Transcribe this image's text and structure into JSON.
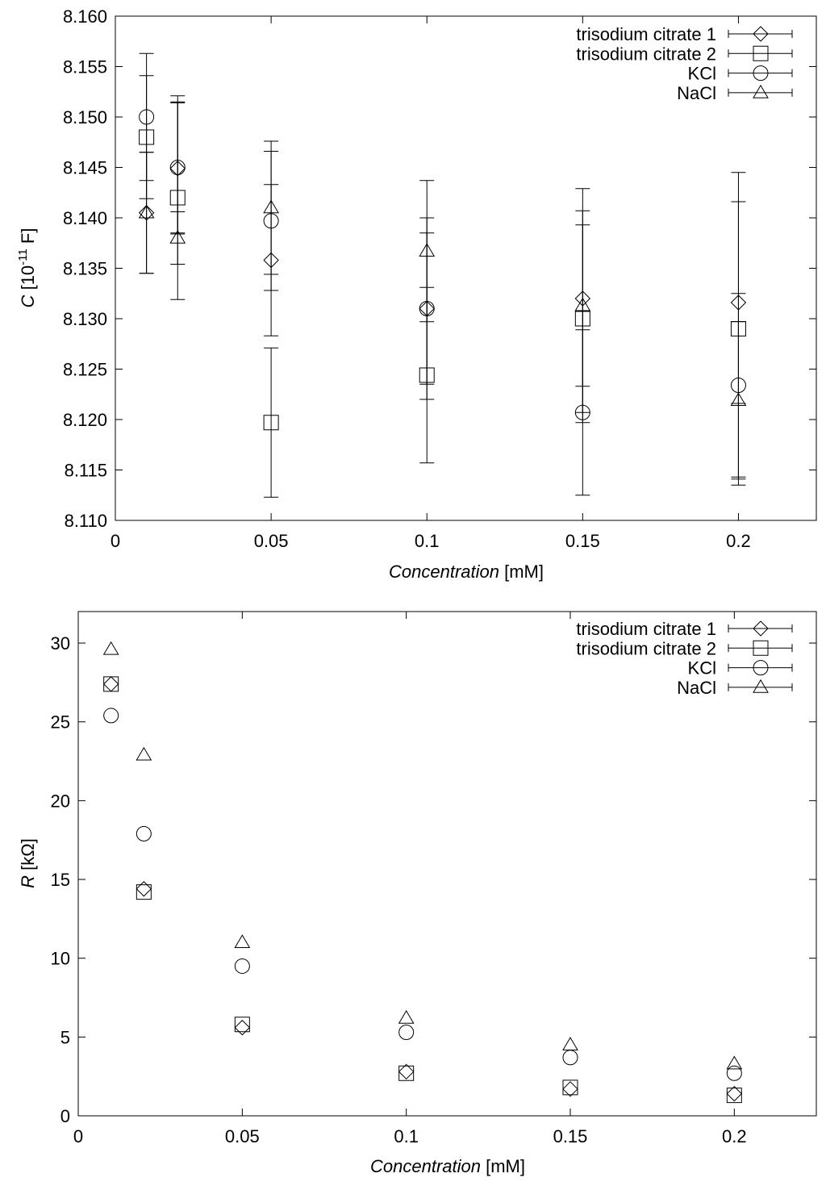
{
  "chart_data": [
    {
      "type": "scatter",
      "y_label_symbol": "C",
      "y_label_base": "[10",
      "y_label_exp": "-11",
      "y_label_rest": "F]",
      "x_label_symbol": "Concentration",
      "x_label_unit": "[mM]",
      "xlim": [
        0,
        0.225
      ],
      "xticks": [
        0,
        0.05,
        0.1,
        0.15,
        0.2
      ],
      "ylim": [
        8.11,
        8.16
      ],
      "yticks": [
        {
          "value": 8.11,
          "label": "8.110"
        },
        {
          "value": 8.115,
          "label": "8.115"
        },
        {
          "value": 8.12,
          "label": "8.120"
        },
        {
          "value": 8.125,
          "label": "8.125"
        },
        {
          "value": 8.13,
          "label": "8.130"
        },
        {
          "value": 8.135,
          "label": "8.135"
        },
        {
          "value": 8.14,
          "label": "8.140"
        },
        {
          "value": 8.145,
          "label": "8.145"
        },
        {
          "value": 8.15,
          "label": "8.150"
        },
        {
          "value": 8.155,
          "label": "8.155"
        },
        {
          "value": 8.16,
          "label": "8.160"
        }
      ],
      "legend": "upper right",
      "x": [
        0.01,
        0.02,
        0.05,
        0.1,
        0.15,
        0.2
      ],
      "series": [
        {
          "name": "trisodium citrate 1",
          "marker": "diamond",
          "color": "#000000",
          "values": [
            8.1405,
            8.1449,
            8.1358,
            8.131,
            8.132,
            8.1316
          ],
          "errors": [
            0.006,
            0.0065,
            0.0075,
            0.009,
            0.0087,
            0.01
          ]
        },
        {
          "name": "trisodium citrate 2",
          "marker": "square",
          "color": "#000000",
          "values": [
            8.148,
            8.142,
            8.1197,
            8.1244,
            8.13,
            8.129
          ],
          "errors": [
            0.0061,
            0.0101,
            0.0074,
            0.0087,
            0.0093,
            0.0155
          ]
        },
        {
          "name": "KCl",
          "marker": "circle",
          "color": "#000000",
          "values": [
            8.15,
            8.145,
            8.1397,
            8.131,
            8.1207,
            8.1234
          ],
          "errors": [
            0.0063,
            0.0065,
            0.0069,
            0.0075,
            0.0082,
            0.0091
          ]
        },
        {
          "name": "NaCl",
          "marker": "triangle",
          "color": "#000000",
          "values": [
            8.1405,
            8.138,
            8.141,
            8.1367,
            8.1313,
            8.1219
          ],
          "errors": [
            0.006,
            0.0026,
            0.0066,
            0.007,
            0.0116,
            0.0078
          ]
        }
      ]
    },
    {
      "type": "scatter",
      "y_label_symbol": "R",
      "y_label_unit": "[kΩ]",
      "x_label_symbol": "Concentration",
      "x_label_unit": "[mM]",
      "xlim": [
        0,
        0.225
      ],
      "xticks": [
        0,
        0.05,
        0.1,
        0.15,
        0.2
      ],
      "ylim": [
        0,
        32
      ],
      "yticks": [
        0,
        5,
        10,
        15,
        20,
        25,
        30
      ],
      "legend": "upper right",
      "x": [
        0.01,
        0.02,
        0.05,
        0.1,
        0.15,
        0.2
      ],
      "series": [
        {
          "name": "trisodium citrate 1",
          "marker": "diamond",
          "color": "#000000",
          "values": [
            27.4,
            14.4,
            5.6,
            2.8,
            1.7,
            1.4
          ]
        },
        {
          "name": "trisodium citrate 2",
          "marker": "square",
          "color": "#000000",
          "values": [
            27.4,
            14.2,
            5.8,
            2.7,
            1.8,
            1.3
          ]
        },
        {
          "name": "KCl",
          "marker": "circle",
          "color": "#000000",
          "values": [
            25.4,
            17.9,
            9.5,
            5.3,
            3.7,
            2.7
          ]
        },
        {
          "name": "NaCl",
          "marker": "triangle",
          "color": "#000000",
          "values": [
            29.6,
            22.9,
            11.0,
            6.2,
            4.5,
            3.3
          ]
        }
      ]
    }
  ]
}
